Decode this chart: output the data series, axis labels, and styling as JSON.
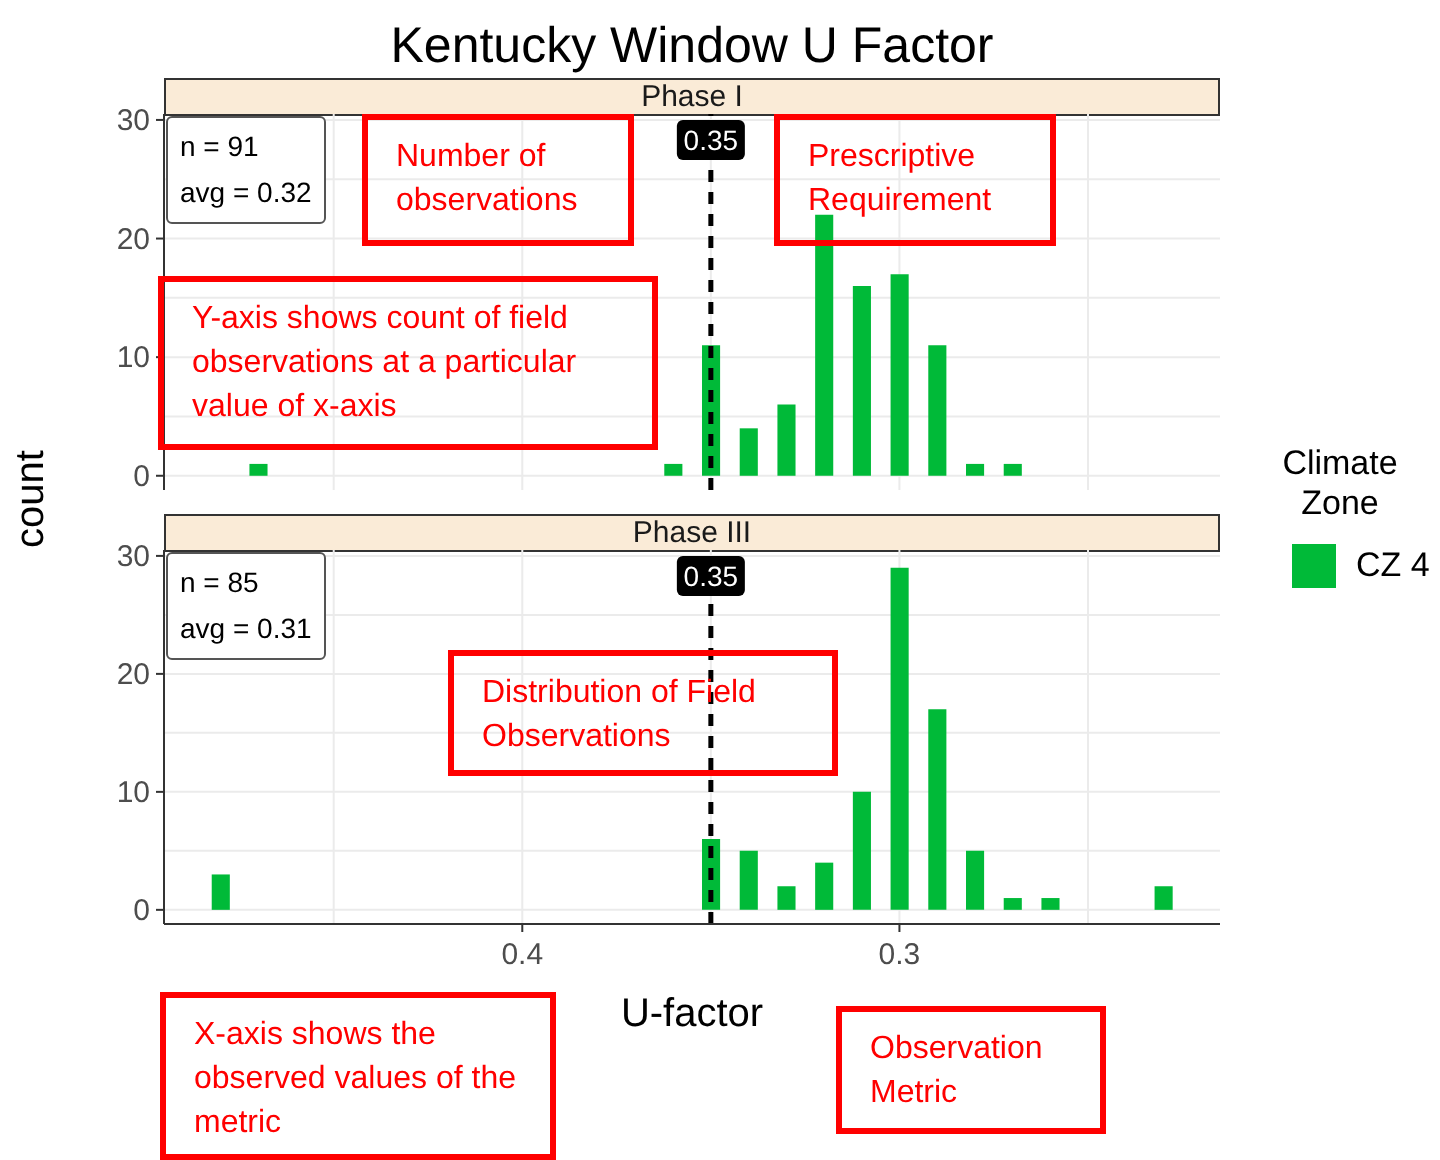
{
  "chart_data": [
    {
      "type": "bar",
      "title": "Kentucky Window U Factor",
      "subtitle": "Phase I",
      "ylabel": "count",
      "legend_title": "Climate Zone",
      "legend": "right",
      "x": [
        0.47,
        0.36,
        0.35,
        0.34,
        0.33,
        0.32,
        0.31,
        0.3,
        0.29,
        0.28,
        0.27
      ],
      "series": [
        {
          "name": "CZ 4",
          "color": "#00ba38",
          "values": [
            1,
            1,
            11,
            4,
            6,
            22,
            16,
            17,
            11,
            1,
            1
          ]
        }
      ],
      "xlim": [
        0.495,
        0.215
      ],
      "xticks": [
        {
          "value": 0.45,
          "label": null
        },
        {
          "value": 0.4,
          "label": null
        },
        {
          "value": 0.35,
          "label": null
        },
        {
          "value": 0.3,
          "label": null
        },
        {
          "value": 0.25,
          "label": null
        }
      ],
      "ylim": [
        -1.2,
        30.5
      ],
      "yticks": [
        0,
        {
          "value": 5,
          "label": null
        },
        10,
        {
          "value": 15,
          "label": null
        },
        20,
        {
          "value": 25,
          "label": null
        },
        30
      ],
      "tick_labels": "y",
      "grid": true,
      "ref_lines": [
        {
          "axis": "x",
          "value": 0.35,
          "label": "0.35",
          "color": "#000000",
          "line_style": "dashed"
        }
      ],
      "annotations": [
        "n = 91",
        "avg = 0.32",
        "Number of observations",
        "Prescriptive Requirement",
        "Y-axis shows count of field observations at a particular value of x-axis"
      ]
    },
    {
      "type": "bar",
      "subtitle": "Phase III",
      "xlabel": "U-factor",
      "x": [
        0.48,
        0.35,
        0.34,
        0.33,
        0.32,
        0.31,
        0.3,
        0.29,
        0.28,
        0.27,
        0.26,
        0.23
      ],
      "series": [
        {
          "color": "#00ba38",
          "values": [
            3,
            6,
            5,
            2,
            4,
            10,
            29,
            17,
            5,
            1,
            1,
            2
          ]
        }
      ],
      "xlim": [
        0.495,
        0.215
      ],
      "xticks": [
        {
          "value": 0.45,
          "label": null
        },
        0.4,
        {
          "value": 0.35,
          "label": null
        },
        0.3,
        {
          "value": 0.25,
          "label": null
        }
      ],
      "ylim": [
        -1.2,
        30.5
      ],
      "yticks": [
        0,
        {
          "value": 5,
          "label": null
        },
        10,
        {
          "value": 15,
          "label": null
        },
        20,
        {
          "value": 25,
          "label": null
        },
        30
      ],
      "grid": true,
      "ref_lines": [
        {
          "axis": "x",
          "value": 0.35,
          "label": "0.35",
          "color": "#000000",
          "line_style": "dashed"
        }
      ],
      "annotations": [
        "n = 85",
        "avg = 0.31",
        "Distribution of Field Observations",
        "X-axis shows the observed values of the metric",
        "Observation Metric"
      ]
    }
  ]
}
